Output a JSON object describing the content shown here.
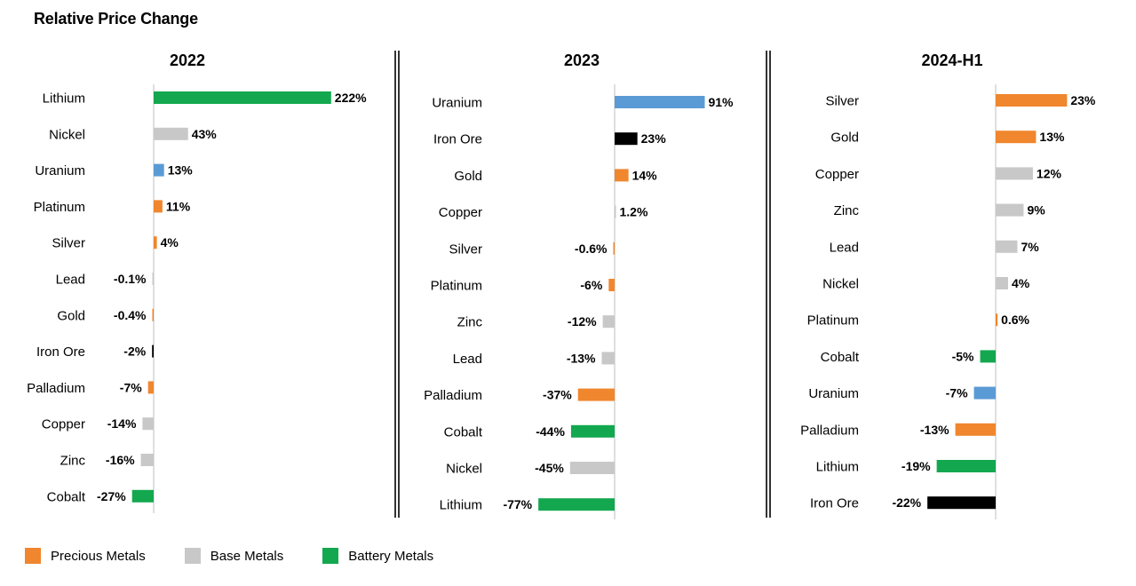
{
  "title": "Relative Price Change",
  "colors": {
    "precious": "#F0862D",
    "base": "#C8C8C8",
    "battery": "#13A84F",
    "uranium": "#5B9BD5",
    "iron": "#000000",
    "axis": "#BFBFBF"
  },
  "legend": [
    {
      "label": "Precious Metals",
      "group": "precious"
    },
    {
      "label": "Base Metals",
      "group": "base"
    },
    {
      "label": "Battery Metals",
      "group": "battery"
    }
  ],
  "chart_data": [
    {
      "type": "bar",
      "orientation": "horizontal",
      "title": "2022",
      "categories": [
        "Lithium",
        "Nickel",
        "Uranium",
        "Platinum",
        "Silver",
        "Lead",
        "Gold",
        "Iron Ore",
        "Palladium",
        "Copper",
        "Zinc",
        "Cobalt"
      ],
      "values": [
        222,
        43,
        13,
        11,
        4,
        -0.1,
        -0.4,
        -2,
        -7,
        -14,
        -16,
        -27
      ],
      "labels": [
        "222%",
        "43%",
        "13%",
        "11%",
        "4%",
        "-0.1%",
        "-0.4%",
        "-2%",
        "-7%",
        "-14%",
        "-16%",
        "-27%"
      ],
      "groups": [
        "battery",
        "base",
        "uranium",
        "precious",
        "precious",
        "base",
        "precious",
        "iron",
        "precious",
        "base",
        "base",
        "battery"
      ]
    },
    {
      "type": "bar",
      "orientation": "horizontal",
      "title": "2023",
      "categories": [
        "Uranium",
        "Iron Ore",
        "Gold",
        "Copper",
        "Silver",
        "Platinum",
        "Zinc",
        "Lead",
        "Palladium",
        "Cobalt",
        "Nickel",
        "Lithium"
      ],
      "values": [
        91,
        23,
        14,
        1.2,
        -0.6,
        -6,
        -12,
        -13,
        -37,
        -44,
        -45,
        -77
      ],
      "labels": [
        "91%",
        "23%",
        "14%",
        "1.2%",
        "-0.6%",
        "-6%",
        "-12%",
        "-13%",
        "-37%",
        "-44%",
        "-45%",
        "-77%"
      ],
      "groups": [
        "uranium",
        "iron",
        "precious",
        "base",
        "precious",
        "precious",
        "base",
        "base",
        "precious",
        "battery",
        "base",
        "battery"
      ]
    },
    {
      "type": "bar",
      "orientation": "horizontal",
      "title": "2024-H1",
      "categories": [
        "Silver",
        "Gold",
        "Copper",
        "Zinc",
        "Lead",
        "Nickel",
        "Platinum",
        "Cobalt",
        "Uranium",
        "Palladium",
        "Lithium",
        "Iron Ore"
      ],
      "values": [
        23,
        13,
        12,
        9,
        7,
        4,
        0.6,
        -5,
        -7,
        -13,
        -19,
        -22
      ],
      "labels": [
        "23%",
        "13%",
        "12%",
        "9%",
        "7%",
        "4%",
        "0.6%",
        "-5%",
        "-7%",
        "-13%",
        "-19%",
        "-22%"
      ],
      "groups": [
        "precious",
        "precious",
        "base",
        "base",
        "base",
        "base",
        "precious",
        "battery",
        "uranium",
        "precious",
        "battery",
        "iron"
      ]
    }
  ]
}
